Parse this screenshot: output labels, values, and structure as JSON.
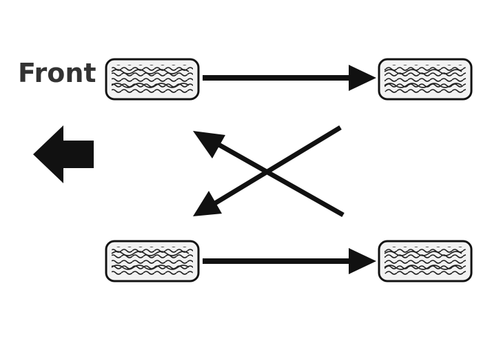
{
  "diagram": {
    "front_label": "Front",
    "colors": {
      "ink": "#111111",
      "tire_fill": "#f2f2f2",
      "label": "#333333"
    },
    "tires": [
      {
        "id": "front-left"
      },
      {
        "id": "rear-left"
      },
      {
        "id": "front-right"
      },
      {
        "id": "rear-right"
      }
    ],
    "direction_icon": "arrow-left-icon"
  }
}
